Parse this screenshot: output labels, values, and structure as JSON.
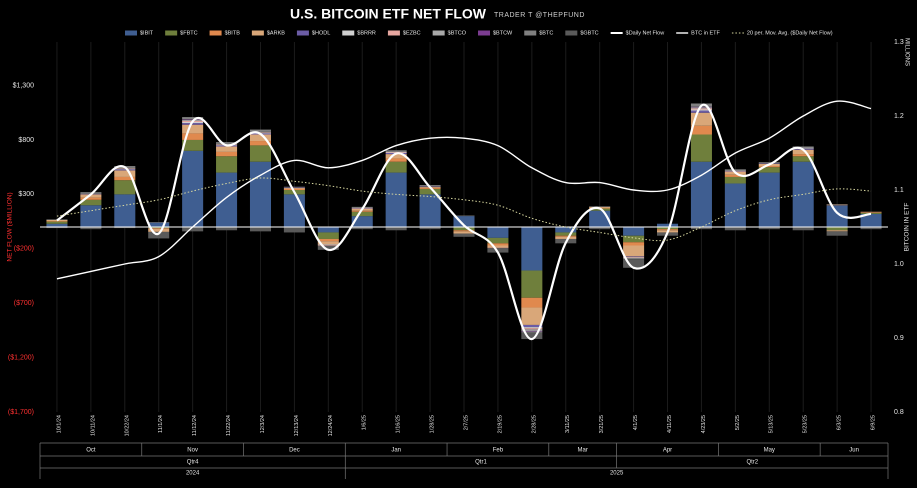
{
  "chart_data": {
    "type": "bar",
    "stacked": true,
    "title": "U.S. BITCOIN ETF NET FLOW",
    "subtitle": "TRADER T @THEPFUND",
    "y_label": "NET FLOW ($MILLION)",
    "y2_label": "BITCOIN IN ETF",
    "y2_unit": "MILLIONS",
    "categories": [
      "10/1/24",
      "10/11/24",
      "10/22/24",
      "11/1/24",
      "11/12/24",
      "11/22/24",
      "12/3/24",
      "12/13/24",
      "12/24/24",
      "1/6/25",
      "1/16/25",
      "1/28/25",
      "2/7/25",
      "2/19/25",
      "2/28/25",
      "3/11/25",
      "3/21/25",
      "4/1/25",
      "4/11/25",
      "4/23/25",
      "5/2/25",
      "5/13/25",
      "5/23/25",
      "6/3/25",
      "6/9/25"
    ],
    "months": [
      "Oct",
      "Nov",
      "Dec",
      "Jan",
      "Feb",
      "Mar",
      "Apr",
      "May",
      "Jun"
    ],
    "quarters": [
      "Qtr4",
      "Qtr1",
      "Qtr2"
    ],
    "years": [
      "2024",
      "2025"
    ],
    "ylim": [
      -1700,
      1700
    ],
    "yticks": [
      {
        "value": 1300,
        "label": "$1,300"
      },
      {
        "value": 800,
        "label": "$800"
      },
      {
        "value": 300,
        "label": "$300"
      },
      {
        "value": -200,
        "label": "($200)"
      },
      {
        "value": -700,
        "label": "($700)"
      },
      {
        "value": -1200,
        "label": "($1,200)"
      },
      {
        "value": -1700,
        "label": "($1,700)"
      }
    ],
    "y2lim": [
      0.8,
      1.3
    ],
    "y2ticks": [
      0.8,
      0.9,
      {
        "value": 1,
        "label": "1.0"
      },
      1.1,
      1.2,
      1.3
    ],
    "series": [
      {
        "name": "$IBIT",
        "color": "#3f5e91",
        "values": [
          30,
          200,
          300,
          40,
          700,
          500,
          600,
          300,
          -50,
          100,
          500,
          300,
          100,
          -100,
          -400,
          -50,
          150,
          -80,
          30,
          600,
          400,
          500,
          600,
          200,
          120
        ]
      },
      {
        "name": "$FBTC",
        "color": "#6f7f3c",
        "values": [
          20,
          50,
          130,
          -10,
          100,
          150,
          150,
          40,
          -60,
          40,
          100,
          50,
          -30,
          -50,
          -250,
          -30,
          20,
          -60,
          -20,
          250,
          60,
          50,
          50,
          -30,
          10
        ]
      },
      {
        "name": "$BITB",
        "color": "#e0894e",
        "values": [
          5,
          20,
          30,
          -5,
          60,
          40,
          40,
          10,
          -20,
          10,
          30,
          10,
          -10,
          -20,
          -90,
          -10,
          5,
          -30,
          -10,
          80,
          20,
          10,
          20,
          5,
          5
        ]
      },
      {
        "name": "$ARKB",
        "color": "#d9a779",
        "values": [
          10,
          30,
          60,
          -30,
          80,
          50,
          60,
          10,
          -30,
          20,
          40,
          10,
          -20,
          -20,
          -160,
          -20,
          10,
          -100,
          -20,
          120,
          30,
          20,
          40,
          -10,
          5
        ]
      },
      {
        "name": "$HODL",
        "color": "#6b5ca5",
        "values": [
          0,
          5,
          10,
          0,
          15,
          10,
          10,
          5,
          0,
          5,
          10,
          5,
          0,
          0,
          -20,
          0,
          0,
          -5,
          0,
          20,
          5,
          5,
          10,
          0,
          0
        ]
      },
      {
        "name": "$BRRR",
        "color": "#d0d0d0",
        "values": [
          0,
          0,
          5,
          0,
          10,
          5,
          5,
          0,
          -5,
          0,
          5,
          0,
          0,
          0,
          -10,
          0,
          0,
          0,
          0,
          10,
          0,
          0,
          5,
          0,
          0
        ]
      },
      {
        "name": "$EZBC",
        "color": "#e7a7a0",
        "values": [
          0,
          0,
          5,
          0,
          10,
          5,
          5,
          0,
          -5,
          0,
          5,
          0,
          0,
          -5,
          -10,
          0,
          0,
          -5,
          0,
          10,
          0,
          0,
          0,
          0,
          0
        ]
      },
      {
        "name": "$BTCO",
        "color": "#a9a9a9",
        "values": [
          0,
          5,
          5,
          0,
          10,
          5,
          5,
          0,
          0,
          0,
          5,
          0,
          0,
          0,
          -15,
          0,
          0,
          -5,
          0,
          10,
          5,
          0,
          5,
          0,
          0
        ]
      },
      {
        "name": "$BTCW",
        "color": "#7b3c90",
        "values": [
          0,
          0,
          0,
          0,
          5,
          0,
          0,
          0,
          0,
          0,
          0,
          0,
          0,
          0,
          -5,
          0,
          0,
          0,
          0,
          5,
          0,
          0,
          0,
          0,
          0
        ]
      },
      {
        "name": "$BTC",
        "color": "#808080",
        "values": [
          5,
          10,
          15,
          5,
          20,
          15,
          20,
          5,
          0,
          10,
          10,
          10,
          5,
          0,
          -10,
          5,
          5,
          -10,
          0,
          30,
          10,
          10,
          10,
          5,
          0
        ]
      },
      {
        "name": "$GBTC",
        "color": "#5a5a5a",
        "values": [
          -10,
          -20,
          -10,
          -60,
          -40,
          -30,
          -40,
          -50,
          -40,
          -20,
          -30,
          -20,
          -30,
          -40,
          -60,
          -40,
          -20,
          -80,
          -30,
          -20,
          -30,
          -20,
          -30,
          -40,
          -20
        ]
      },
      {
        "name": "$Daily Net Flow",
        "type": "line",
        "color": "#ffffff",
        "width": 2.2,
        "values": [
          60,
          300,
          550,
          -60,
          970,
          750,
          855,
          320,
          -210,
          165,
          675,
          365,
          15,
          -235,
          -1030,
          -145,
          170,
          -375,
          -50,
          1115,
          500,
          575,
          710,
          130,
          120
        ]
      },
      {
        "name": "BTC in ETF",
        "type": "line",
        "axis": "y2",
        "color": "#ffffff",
        "width": 1.4,
        "values": [
          0.98,
          0.99,
          1.0,
          1.01,
          1.05,
          1.09,
          1.12,
          1.14,
          1.13,
          1.14,
          1.16,
          1.17,
          1.17,
          1.16,
          1.13,
          1.11,
          1.11,
          1.1,
          1.1,
          1.12,
          1.15,
          1.17,
          1.2,
          1.22,
          1.21
        ]
      },
      {
        "name": "20 per. Mov. Avg. ($Daily Net Flow)",
        "type": "line",
        "dashed": true,
        "color": "#d8d8a0",
        "width": 1,
        "values": [
          100,
          150,
          200,
          250,
          330,
          400,
          450,
          420,
          380,
          330,
          300,
          280,
          250,
          200,
          80,
          0,
          -50,
          -100,
          -120,
          0,
          150,
          250,
          300,
          350,
          330
        ]
      }
    ]
  }
}
